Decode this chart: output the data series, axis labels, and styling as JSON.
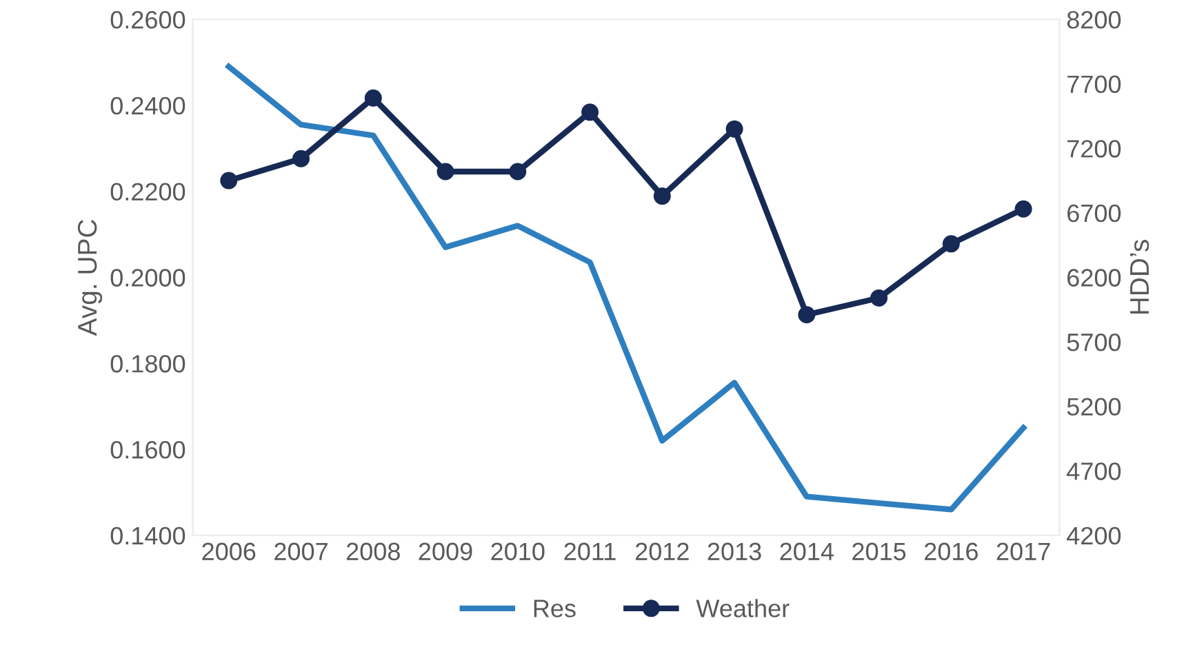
{
  "chart_data": {
    "type": "line",
    "ylabel": "Avg. UPC",
    "y2label": "HDD’s",
    "categories": [
      "2006",
      "2007",
      "2008",
      "2009",
      "2010",
      "2011",
      "2012",
      "2013",
      "2014",
      "2015",
      "2016",
      "2017"
    ],
    "series": [
      {
        "name": "Res",
        "color": "#2e7fbf",
        "marker": "none",
        "values": [
          0.249,
          0.2355,
          0.233,
          0.207,
          0.212,
          0.2035,
          0.162,
          0.1755,
          0.149,
          0.1475,
          0.146,
          0.165
        ]
      },
      {
        "name": "Weather",
        "color": "#172a55",
        "marker": "circle",
        "axis": "y2",
        "values": [
          6950,
          7120,
          7590,
          7020,
          7020,
          7480,
          6830,
          7350,
          5910,
          6040,
          6460,
          6730
        ]
      }
    ],
    "ylim": [
      0.14,
      0.26
    ],
    "yticks": [
      {
        "value": 0.14,
        "label": "0.1400"
      },
      {
        "value": 0.16,
        "label": "0.1600"
      },
      {
        "value": 0.18,
        "label": "0.1800"
      },
      {
        "value": 0.2,
        "label": "0.2000"
      },
      {
        "value": 0.22,
        "label": "0.2200"
      },
      {
        "value": 0.24,
        "label": "0.2400"
      },
      {
        "value": 0.26,
        "label": "0.2600"
      }
    ],
    "y2lim": [
      4200,
      8200
    ],
    "y2ticks": [
      4200,
      4700,
      5200,
      5700,
      6200,
      6700,
      7200,
      7700,
      8200
    ],
    "grid": false,
    "legend": "bottom",
    "line_style": "solid"
  }
}
